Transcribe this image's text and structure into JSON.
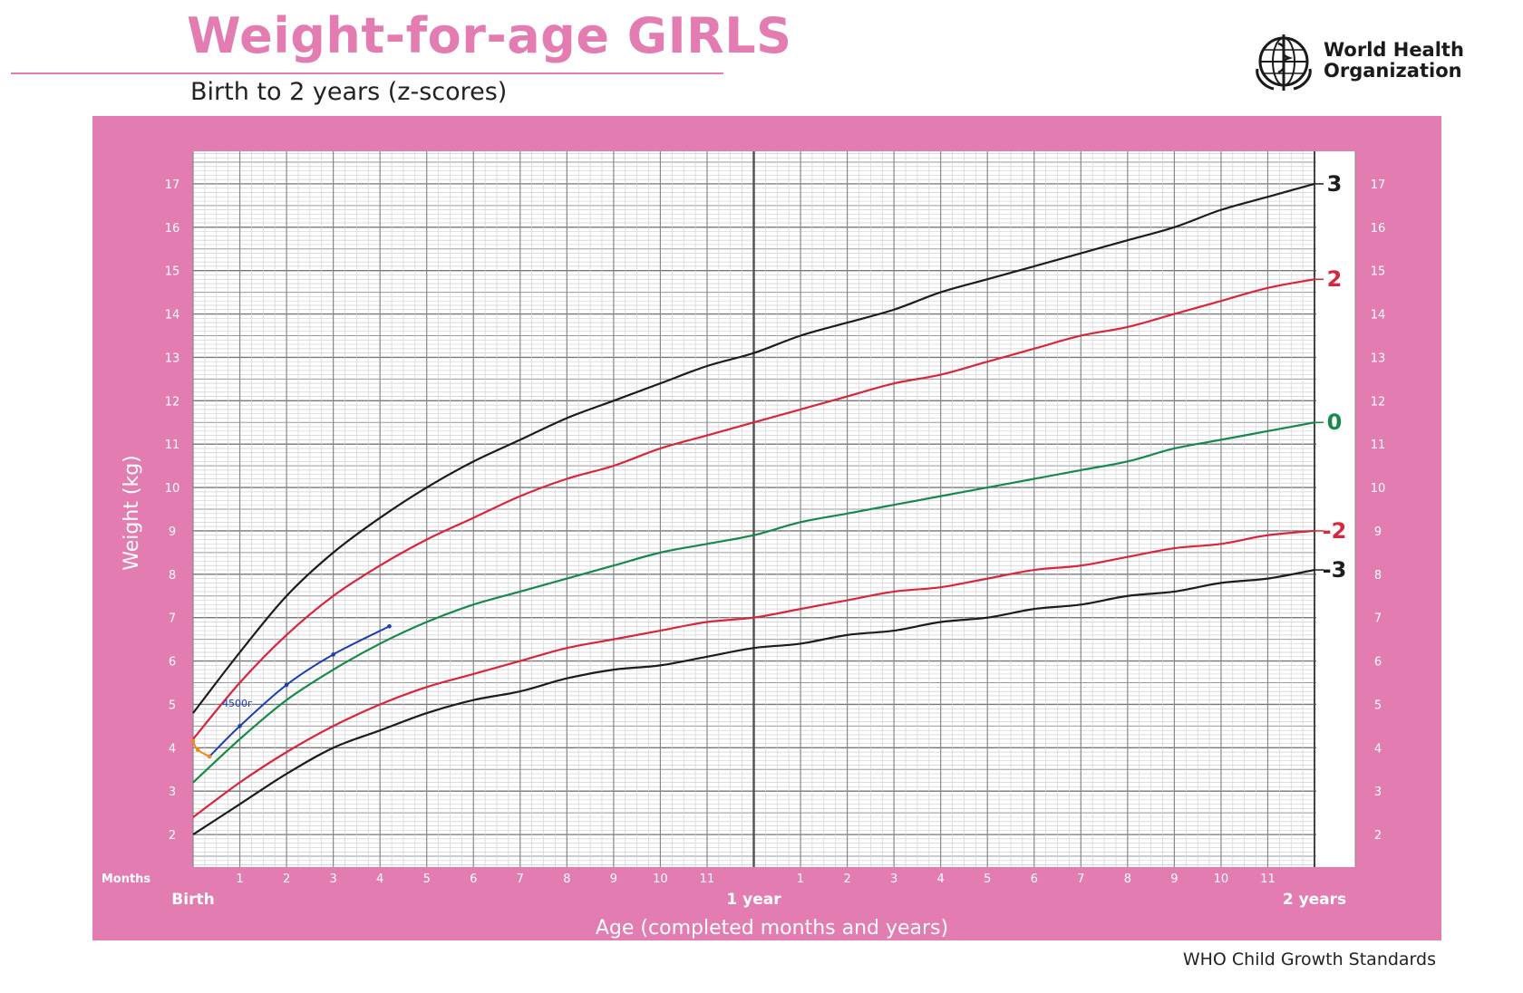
{
  "header": {
    "title": "Weight-for-age GIRLS",
    "subtitle": "Birth to 2 years (z-scores)",
    "org_name_line1": "World Health",
    "org_name_line2": "Organization",
    "logo_icon": "who-emblem-icon"
  },
  "footer": {
    "text": "WHO Child Growth Standards"
  },
  "colors": {
    "brand_pink": "#e37db1",
    "line_black": "#1c1c1c",
    "line_red": "#d7263d",
    "line_green": "#17894a",
    "measure_blue": "#1a3fb0",
    "measure_orange": "#f08a1c"
  },
  "chart_data": {
    "type": "line",
    "xlabel": "Age (completed months and years)",
    "ylabel": "Weight (kg)",
    "xlim": [
      0,
      24
    ],
    "ylim": [
      1.25,
      17.75
    ],
    "grid": true,
    "x_unit_label": "Months",
    "x_tick_labels": [
      "Birth",
      "1",
      "2",
      "3",
      "4",
      "5",
      "6",
      "7",
      "8",
      "9",
      "10",
      "11",
      "1 year",
      "1",
      "2",
      "3",
      "4",
      "5",
      "6",
      "7",
      "8",
      "9",
      "10",
      "11",
      "2 years"
    ],
    "y_ticks": [
      2,
      3,
      4,
      5,
      6,
      7,
      8,
      9,
      10,
      11,
      12,
      13,
      14,
      15,
      16,
      17
    ],
    "x": [
      0,
      1,
      2,
      3,
      4,
      5,
      6,
      7,
      8,
      9,
      10,
      11,
      12,
      13,
      14,
      15,
      16,
      17,
      18,
      19,
      20,
      21,
      22,
      23,
      24
    ],
    "series": [
      {
        "name": "3",
        "color": "#1c1c1c",
        "values": [
          4.8,
          6.2,
          7.5,
          8.5,
          9.3,
          10.0,
          10.6,
          11.1,
          11.6,
          12.0,
          12.4,
          12.8,
          13.1,
          13.5,
          13.8,
          14.1,
          14.5,
          14.8,
          15.1,
          15.4,
          15.7,
          16.0,
          16.4,
          16.7,
          17.0
        ]
      },
      {
        "name": "2",
        "color": "#d7263d",
        "values": [
          4.2,
          5.5,
          6.6,
          7.5,
          8.2,
          8.8,
          9.3,
          9.8,
          10.2,
          10.5,
          10.9,
          11.2,
          11.5,
          11.8,
          12.1,
          12.4,
          12.6,
          12.9,
          13.2,
          13.5,
          13.7,
          14.0,
          14.3,
          14.6,
          14.8
        ]
      },
      {
        "name": "0",
        "color": "#17894a",
        "values": [
          3.2,
          4.2,
          5.1,
          5.8,
          6.4,
          6.9,
          7.3,
          7.6,
          7.9,
          8.2,
          8.5,
          8.7,
          8.9,
          9.2,
          9.4,
          9.6,
          9.8,
          10.0,
          10.2,
          10.4,
          10.6,
          10.9,
          11.1,
          11.3,
          11.5
        ]
      },
      {
        "name": "-2",
        "color": "#d7263d",
        "values": [
          2.4,
          3.2,
          3.9,
          4.5,
          5.0,
          5.4,
          5.7,
          6.0,
          6.3,
          6.5,
          6.7,
          6.9,
          7.0,
          7.2,
          7.4,
          7.6,
          7.7,
          7.9,
          8.1,
          8.2,
          8.4,
          8.6,
          8.7,
          8.9,
          9.0
        ]
      },
      {
        "name": "-3",
        "color": "#1c1c1c",
        "values": [
          2.0,
          2.7,
          3.4,
          4.0,
          4.4,
          4.8,
          5.1,
          5.3,
          5.6,
          5.8,
          5.9,
          6.1,
          6.3,
          6.4,
          6.6,
          6.7,
          6.9,
          7.0,
          7.2,
          7.3,
          7.5,
          7.6,
          7.8,
          7.9,
          8.1
        ]
      }
    ],
    "annotations": [
      {
        "text": "4500г",
        "x": 0.95,
        "y": 4.95
      }
    ],
    "measurements": [
      {
        "color": "#1a3fb0",
        "points": [
          [
            0.35,
            3.8
          ],
          [
            1.0,
            4.5
          ],
          [
            2.0,
            5.45
          ],
          [
            3.0,
            6.15
          ],
          [
            4.2,
            6.8
          ]
        ]
      },
      {
        "color": "#f08a1c",
        "points": [
          [
            0,
            4.15
          ],
          [
            0.1,
            3.95
          ],
          [
            0.35,
            3.8
          ]
        ]
      }
    ]
  }
}
